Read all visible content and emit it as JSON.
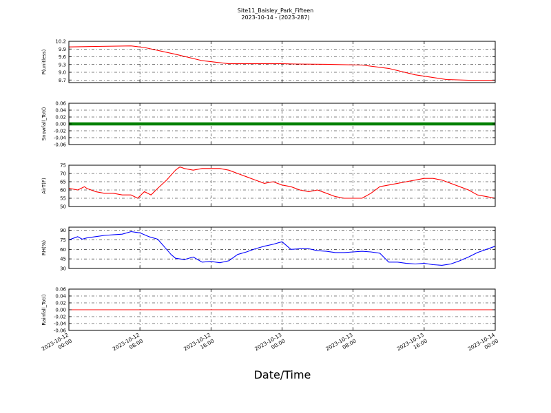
{
  "header": {
    "title": "Site11_Baisley_Park_Fifteen",
    "subtitle": "2023-10-14 - (2023-287)"
  },
  "chart_data": [
    {
      "type": "line",
      "ylabel": "P(unitless)",
      "ylim": [
        8.6,
        10.2
      ],
      "yticks": [
        8.7,
        9.0,
        9.3,
        9.6,
        9.9,
        10.2
      ],
      "ytick_labels": [
        "8.7",
        "9.0",
        "9.3",
        "9.6",
        "9.9",
        "10.2"
      ],
      "grid": true,
      "series": [
        {
          "color": "#ff0000",
          "x_hours": [
            0,
            6,
            14,
            17,
            24,
            30,
            36,
            42,
            48,
            51,
            58,
            66,
            72,
            78,
            85,
            90,
            96
          ],
          "values": [
            9.98,
            10.0,
            10.02,
            9.96,
            9.7,
            9.45,
            9.33,
            9.33,
            9.33,
            9.32,
            9.31,
            9.28,
            9.15,
            8.9,
            8.72,
            8.69,
            8.69
          ]
        }
      ]
    },
    {
      "type": "line",
      "ylabel": "Snowfall_Tot()",
      "ylim": [
        -0.06,
        0.06
      ],
      "yticks": [
        -0.06,
        -0.04,
        -0.02,
        0.0,
        0.02,
        0.04,
        0.06
      ],
      "ytick_labels": [
        "-0.06",
        "-0.04",
        "-0.02",
        "0.00",
        "0.02",
        "0.04",
        "0.06"
      ],
      "grid": true,
      "series": [
        {
          "color": "#008000",
          "marker": "square",
          "x_hours": [
            0,
            96
          ],
          "values": [
            0,
            0
          ]
        }
      ]
    },
    {
      "type": "line",
      "ylabel": "AirT(F)",
      "ylim": [
        50,
        75
      ],
      "yticks": [
        50,
        55,
        60,
        65,
        70,
        75
      ],
      "ytick_labels": [
        "50",
        "55",
        "60",
        "65",
        "70",
        "75"
      ],
      "grid": true,
      "series": [
        {
          "color": "#ff0000",
          "x_hours": [
            0,
            2,
            3.5,
            4,
            6,
            8,
            10,
            12,
            14,
            15.5,
            17,
            18.5,
            20,
            22,
            24,
            25,
            26,
            28,
            30,
            32,
            34,
            36,
            38,
            40,
            42,
            44,
            46,
            48,
            50,
            52,
            54,
            56,
            58,
            60,
            62,
            64,
            66,
            68,
            70,
            72,
            74,
            76,
            78,
            80,
            82,
            84,
            86,
            88,
            90,
            92,
            94,
            96
          ],
          "values": [
            61,
            60,
            62,
            61,
            59,
            58,
            58,
            57,
            57,
            55,
            59,
            57,
            61,
            66,
            72,
            74,
            73,
            72,
            73,
            73,
            73,
            72,
            70,
            68,
            66,
            64,
            65,
            63,
            62,
            60,
            59,
            60,
            58,
            56,
            55,
            55,
            55,
            58,
            62,
            63,
            64,
            65,
            66,
            67,
            67,
            66,
            64,
            62,
            60,
            57,
            56,
            55
          ]
        }
      ]
    },
    {
      "type": "line",
      "ylabel": "RH(%)",
      "ylim": [
        30,
        95
      ],
      "yticks": [
        30,
        45,
        60,
        75,
        90
      ],
      "ytick_labels": [
        "30",
        "45",
        "60",
        "75",
        "90"
      ],
      "grid": true,
      "series": [
        {
          "color": "#0000ff",
          "x_hours": [
            0,
            2,
            3,
            4,
            6,
            8,
            10,
            12,
            14,
            16,
            18,
            20,
            22,
            23,
            24,
            26,
            28,
            30,
            32,
            34,
            36,
            38,
            40,
            42,
            44,
            46,
            48,
            50,
            52,
            54,
            56,
            58,
            60,
            62,
            64,
            66,
            68,
            70,
            72,
            74,
            76,
            78,
            80,
            82,
            84,
            86,
            88,
            90,
            92,
            94,
            96
          ],
          "values": [
            75,
            80,
            76,
            78,
            80,
            82,
            83,
            84,
            88,
            86,
            80,
            76,
            60,
            52,
            46,
            44,
            48,
            40,
            41,
            39,
            42,
            52,
            56,
            61,
            65,
            68,
            72,
            60,
            61,
            61,
            58,
            57,
            55,
            55,
            56,
            57,
            56,
            54,
            40,
            40,
            38,
            37,
            38,
            36,
            35,
            37,
            42,
            48,
            55,
            60,
            65
          ]
        }
      ]
    },
    {
      "type": "line",
      "ylabel": "Rainfall_Tot()",
      "ylim": [
        -0.06,
        0.06
      ],
      "yticks": [
        -0.06,
        -0.04,
        -0.02,
        0.0,
        0.02,
        0.04,
        0.06
      ],
      "ytick_labels": [
        "-0.06",
        "-0.04",
        "-0.02",
        "0.00",
        "0.02",
        "0.04",
        "0.06"
      ],
      "grid": true,
      "series": [
        {
          "color": "#ff0000",
          "x_hours": [
            0,
            96
          ],
          "values": [
            0,
            0
          ]
        }
      ]
    }
  ],
  "x_axis": {
    "label": "Date/Time",
    "range_hours": [
      0,
      96
    ],
    "tick_hours": [
      0,
      16,
      32,
      48,
      64,
      80,
      96
    ],
    "tick_labels": [
      [
        "2023-10-12",
        "00:00"
      ],
      [
        "2023-10-12",
        "08:00"
      ],
      [
        "2023-10-12",
        "16:00"
      ],
      [
        "2023-10-13",
        "00:00"
      ],
      [
        "2023-10-13",
        "08:00"
      ],
      [
        "2023-10-13",
        "16:00"
      ],
      [
        "2023-10-14",
        "00:00"
      ]
    ]
  }
}
